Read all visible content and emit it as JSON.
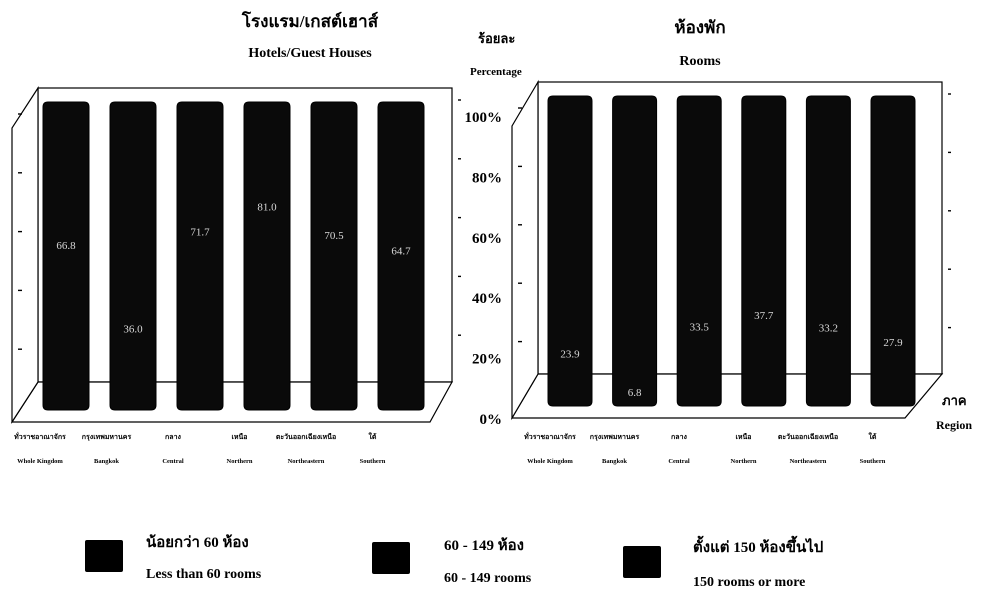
{
  "chart_data": [
    {
      "type": "bar",
      "title": "โรงแรม/เกสต์เฮาส์",
      "subtitle": "Hotels/Guest Houses",
      "categories_th": [
        "ทั่วราชอาณาจักร",
        "กรุงเทพมหานคร",
        "กลาง",
        "เหนือ",
        "ตะวันออกเฉียงเหนือ",
        "ใต้"
      ],
      "categories": [
        "Whole Kingdom",
        "Bangkok",
        "Central",
        "Northern",
        "Northeastern",
        "Southern"
      ],
      "values": [
        66.8,
        36.0,
        71.7,
        81.0,
        70.5,
        64.7
      ],
      "value_labels": [
        "66.8",
        "36.0",
        "71.7",
        "81.0",
        "70.5",
        "64.7"
      ],
      "ylim": [
        0,
        100
      ],
      "grid": true
    },
    {
      "type": "bar",
      "title": "ห้องพัก",
      "subtitle": "Rooms",
      "ylabel_th": "ร้อยละ",
      "ylabel": "Percentage",
      "xlabel_th": "ภาค",
      "xlabel": "Region",
      "yticks": [
        "0%",
        "20%",
        "40%",
        "60%",
        "80%",
        "100%"
      ],
      "categories_th": [
        "ทั่วราชอาณาจักร",
        "กรุงเทพมหานคร",
        "กลาง",
        "เหนือ",
        "ตะวันออกเฉียงเหนือ",
        "ใต้"
      ],
      "categories": [
        "Whole Kingdom",
        "Bangkok",
        "Central",
        "Northern",
        "Northeastern",
        "Southern"
      ],
      "values": [
        23.9,
        6.8,
        33.5,
        37.7,
        33.2,
        27.9
      ],
      "value_labels": [
        "23.9",
        "6.8",
        "33.5",
        "37.7",
        "33.2",
        "27.9"
      ],
      "ylim": [
        0,
        100
      ],
      "grid": true
    }
  ],
  "legend": [
    {
      "th": "น้อยกว่า 60 ห้อง",
      "en": "Less than 60 rooms",
      "color": "#000000"
    },
    {
      "th": "60 - 149 ห้อง",
      "en": "60 - 149 rooms",
      "color": "#000000"
    },
    {
      "th": "ตั้งแต่ 150 ห้องขึ้นไป",
      "en": "150 rooms or more",
      "color": "#000000"
    }
  ]
}
